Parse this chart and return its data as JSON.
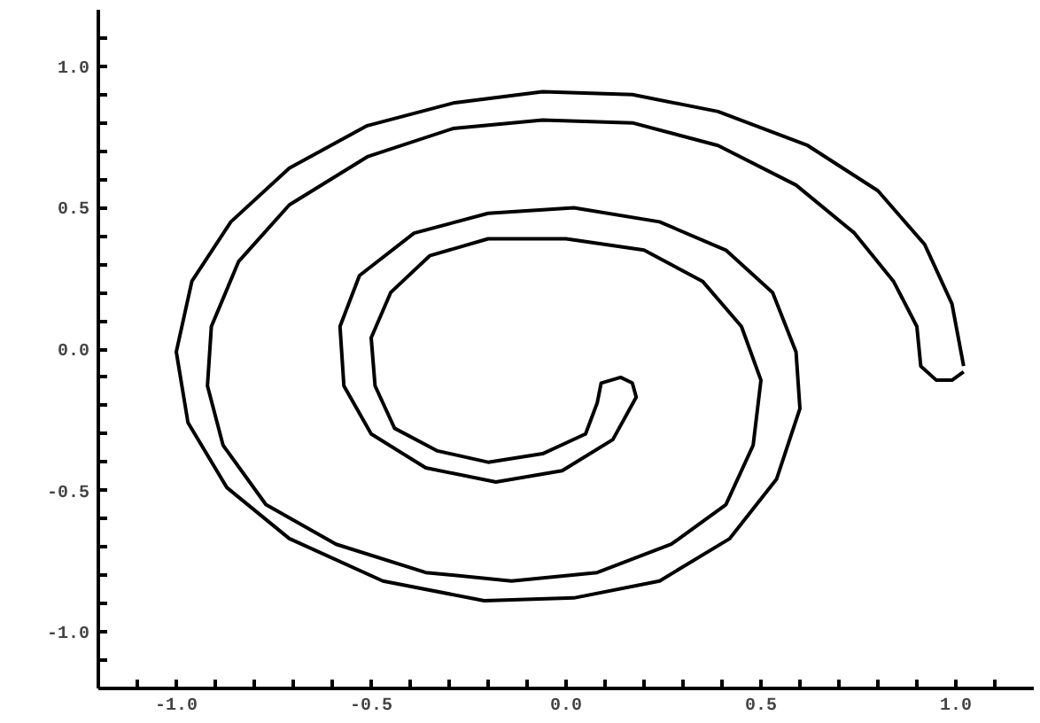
{
  "chart_data": {
    "type": "line",
    "marker": "none",
    "line_style": "solid",
    "grid": false,
    "xlim": [
      -1.2,
      1.2
    ],
    "ylim": [
      -1.2,
      1.2
    ],
    "xticks": [
      {
        "value": -1.1,
        "label": null
      },
      {
        "value": -1.0,
        "label": "-1.0"
      },
      {
        "value": -0.9,
        "label": null
      },
      {
        "value": -0.8,
        "label": null
      },
      {
        "value": -0.7,
        "label": null
      },
      {
        "value": -0.6,
        "label": null
      },
      {
        "value": -0.5,
        "label": "-0.5"
      },
      {
        "value": -0.4,
        "label": null
      },
      {
        "value": -0.3,
        "label": null
      },
      {
        "value": -0.2,
        "label": null
      },
      {
        "value": -0.1,
        "label": null
      },
      {
        "value": 0.0,
        "label": "0.0"
      },
      {
        "value": 0.1,
        "label": null
      },
      {
        "value": 0.2,
        "label": null
      },
      {
        "value": 0.3,
        "label": null
      },
      {
        "value": 0.4,
        "label": null
      },
      {
        "value": 0.5,
        "label": "0.5"
      },
      {
        "value": 0.6,
        "label": null
      },
      {
        "value": 0.7,
        "label": null
      },
      {
        "value": 0.8,
        "label": null
      },
      {
        "value": 0.9,
        "label": null
      },
      {
        "value": 1.0,
        "label": "1.0"
      },
      {
        "value": 1.1,
        "label": null
      }
    ],
    "yticks": [
      {
        "value": -1.1,
        "label": null
      },
      {
        "value": -1.0,
        "label": "-1.0"
      },
      {
        "value": -0.9,
        "label": null
      },
      {
        "value": -0.8,
        "label": null
      },
      {
        "value": -0.7,
        "label": null
      },
      {
        "value": -0.6,
        "label": null
      },
      {
        "value": -0.5,
        "label": "-0.5"
      },
      {
        "value": -0.4,
        "label": null
      },
      {
        "value": -0.3,
        "label": null
      },
      {
        "value": -0.2,
        "label": null
      },
      {
        "value": -0.1,
        "label": null
      },
      {
        "value": 0.0,
        "label": "0.0"
      },
      {
        "value": 0.1,
        "label": null
      },
      {
        "value": 0.2,
        "label": null
      },
      {
        "value": 0.3,
        "label": null
      },
      {
        "value": 0.4,
        "label": null
      },
      {
        "value": 0.5,
        "label": "0.5"
      },
      {
        "value": 0.6,
        "label": null
      },
      {
        "value": 0.7,
        "label": null
      },
      {
        "value": 0.8,
        "label": null
      },
      {
        "value": 0.9,
        "label": null
      },
      {
        "value": 1.0,
        "label": "1.0"
      },
      {
        "value": 1.1,
        "label": null
      }
    ],
    "series": [
      {
        "color": "#000000",
        "x": [
          1.02,
          0.99,
          0.92,
          0.8,
          0.62,
          0.39,
          0.17,
          -0.06,
          -0.29,
          -0.51,
          -0.71,
          -0.86,
          -0.96,
          -1.0,
          -0.97,
          -0.87,
          -0.71,
          -0.47,
          -0.21,
          0.02,
          0.24,
          0.42,
          0.54,
          0.6,
          0.59,
          0.53,
          0.41,
          0.24,
          0.02,
          -0.2,
          -0.39,
          -0.53,
          -0.58,
          -0.57,
          -0.5,
          -0.36,
          -0.18,
          -0.01,
          0.12,
          0.18,
          0.17,
          0.14,
          0.09,
          0.08,
          0.05,
          -0.06,
          -0.2,
          -0.33,
          -0.44,
          -0.49,
          -0.5,
          -0.45,
          -0.35,
          -0.2,
          0.0,
          0.2,
          0.35,
          0.45,
          0.5,
          0.48,
          0.41,
          0.27,
          0.08,
          -0.14,
          -0.36,
          -0.59,
          -0.77,
          -0.88,
          -0.92,
          -0.91,
          -0.84,
          -0.71,
          -0.51,
          -0.29,
          -0.06,
          0.17,
          0.39,
          0.59,
          0.74,
          0.84,
          0.9,
          0.91,
          0.95,
          0.99,
          1.02
        ],
        "values": [
          -0.06,
          0.16,
          0.37,
          0.56,
          0.72,
          0.84,
          0.9,
          0.91,
          0.87,
          0.79,
          0.64,
          0.45,
          0.24,
          -0.01,
          -0.26,
          -0.49,
          -0.67,
          -0.82,
          -0.89,
          -0.88,
          -0.82,
          -0.67,
          -0.46,
          -0.21,
          -0.01,
          0.2,
          0.35,
          0.45,
          0.5,
          0.48,
          0.41,
          0.26,
          0.08,
          -0.13,
          -0.3,
          -0.42,
          -0.47,
          -0.43,
          -0.32,
          -0.17,
          -0.12,
          -0.1,
          -0.12,
          -0.19,
          -0.3,
          -0.37,
          -0.4,
          -0.36,
          -0.28,
          -0.13,
          0.04,
          0.2,
          0.33,
          0.39,
          0.39,
          0.35,
          0.24,
          0.08,
          -0.11,
          -0.34,
          -0.55,
          -0.69,
          -0.79,
          -0.82,
          -0.79,
          -0.69,
          -0.55,
          -0.34,
          -0.13,
          0.08,
          0.31,
          0.51,
          0.68,
          0.78,
          0.81,
          0.8,
          0.72,
          0.58,
          0.41,
          0.24,
          0.08,
          -0.06,
          -0.11,
          -0.11,
          -0.08
        ]
      }
    ]
  }
}
